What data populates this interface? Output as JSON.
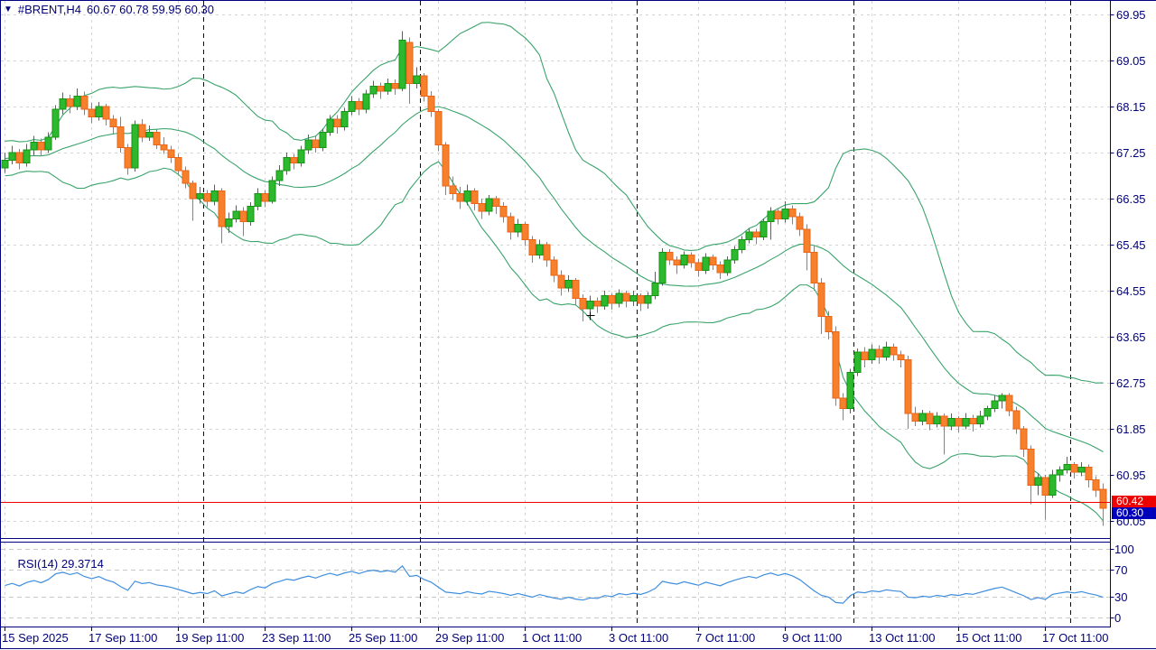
{
  "header": {
    "dropdown_icon": "▼",
    "symbol_period": "#BRENT,H4",
    "ohlc_text": "60.67 60.78 59.95 60.30"
  },
  "price_badges": {
    "red_value": "60.42",
    "blue_value": "60.30"
  },
  "rsi_panel_label": {
    "name": "RSI(14)",
    "value": "29.3714"
  },
  "chart_data": {
    "type": "candlestick",
    "symbol": "#BRENT",
    "timeframe": "H4",
    "current_bar": {
      "open": 60.67,
      "high": 60.78,
      "low": 59.95,
      "close": 60.3
    },
    "red_price_line": 60.42,
    "current_price": 60.3,
    "y_axis": {
      "top_label": 69.95,
      "bottom_label": 60.05,
      "step": 0.9,
      "labels": [
        69.95,
        69.05,
        68.15,
        67.25,
        66.35,
        65.45,
        64.55,
        63.65,
        62.75,
        61.85,
        60.95,
        60.05
      ]
    },
    "x_labels": [
      "15 Sep 2025",
      "17 Sep 11:00",
      "19 Sep 11:00",
      "23 Sep 11:00",
      "25 Sep 11:00",
      "29 Sep 11:00",
      "1 Oct 11:00",
      "3 Oct 11:00",
      "7 Oct 11:00",
      "9 Oct 11:00",
      "13 Oct 11:00",
      "15 Oct 11:00",
      "17 Oct 11:00"
    ],
    "x_label_bar_index": [
      0,
      12,
      24,
      36,
      48,
      60,
      72,
      84,
      96,
      108,
      120,
      132,
      144
    ],
    "week_separator_bar_boundaries": [
      27.5,
      57.5,
      87.5,
      117.5,
      147.5
    ],
    "bars_per_label": 12,
    "candles": [
      [
        66.95,
        67.25,
        66.85,
        67.1
      ],
      [
        67.1,
        67.38,
        67.02,
        67.25
      ],
      [
        67.25,
        67.32,
        66.92,
        67.05
      ],
      [
        67.05,
        67.42,
        66.98,
        67.3
      ],
      [
        67.3,
        67.58,
        67.2,
        67.45
      ],
      [
        67.45,
        67.52,
        67.18,
        67.3
      ],
      [
        67.3,
        67.65,
        67.24,
        67.55
      ],
      [
        67.55,
        68.18,
        67.5,
        68.1
      ],
      [
        68.1,
        68.42,
        68.0,
        68.3
      ],
      [
        68.3,
        68.38,
        68.02,
        68.15
      ],
      [
        68.15,
        68.5,
        68.08,
        68.35
      ],
      [
        68.35,
        68.44,
        67.98,
        68.1
      ],
      [
        68.1,
        68.22,
        67.82,
        67.95
      ],
      [
        67.95,
        68.24,
        67.88,
        68.15
      ],
      [
        68.15,
        68.2,
        67.78,
        67.9
      ],
      [
        67.9,
        67.98,
        67.6,
        67.75
      ],
      [
        67.75,
        67.95,
        67.25,
        67.35
      ],
      [
        67.35,
        67.42,
        66.82,
        66.95
      ],
      [
        66.95,
        67.88,
        66.88,
        67.8
      ],
      [
        67.8,
        67.9,
        67.45,
        67.55
      ],
      [
        67.55,
        67.78,
        67.48,
        67.65
      ],
      [
        67.65,
        67.7,
        67.32,
        67.4
      ],
      [
        67.4,
        67.55,
        67.22,
        67.3
      ],
      [
        67.3,
        67.38,
        67.05,
        67.15
      ],
      [
        67.15,
        67.22,
        66.8,
        66.9
      ],
      [
        66.9,
        66.98,
        66.55,
        66.65
      ],
      [
        66.65,
        66.7,
        65.92,
        66.35
      ],
      [
        66.35,
        66.58,
        66.25,
        66.45
      ],
      [
        66.45,
        66.52,
        66.18,
        66.3
      ],
      [
        66.3,
        66.62,
        66.22,
        66.5
      ],
      [
        66.5,
        66.55,
        65.48,
        65.8
      ],
      [
        65.8,
        66.08,
        65.68,
        65.95
      ],
      [
        65.95,
        66.22,
        65.88,
        66.1
      ],
      [
        66.1,
        66.18,
        65.62,
        65.9
      ],
      [
        65.9,
        66.28,
        65.82,
        66.2
      ],
      [
        66.2,
        66.55,
        66.12,
        66.45
      ],
      [
        66.45,
        66.52,
        66.18,
        66.3
      ],
      [
        66.3,
        66.78,
        66.25,
        66.7
      ],
      [
        66.7,
        67.0,
        66.6,
        66.9
      ],
      [
        66.9,
        67.25,
        66.82,
        67.15
      ],
      [
        67.15,
        67.22,
        66.92,
        67.05
      ],
      [
        67.05,
        67.38,
        66.98,
        67.3
      ],
      [
        67.3,
        67.6,
        67.22,
        67.5
      ],
      [
        67.5,
        67.58,
        67.25,
        67.35
      ],
      [
        67.35,
        67.72,
        67.28,
        67.65
      ],
      [
        67.65,
        67.98,
        67.58,
        67.9
      ],
      [
        67.9,
        67.98,
        67.62,
        67.75
      ],
      [
        67.75,
        68.12,
        67.68,
        68.05
      ],
      [
        68.05,
        68.35,
        67.98,
        68.25
      ],
      [
        68.25,
        68.32,
        67.98,
        68.1
      ],
      [
        68.1,
        68.48,
        68.02,
        68.4
      ],
      [
        68.4,
        68.65,
        68.32,
        68.55
      ],
      [
        68.55,
        68.62,
        68.3,
        68.45
      ],
      [
        68.45,
        68.7,
        68.38,
        68.6
      ],
      [
        68.6,
        68.68,
        68.38,
        68.5
      ],
      [
        68.5,
        69.62,
        68.45,
        69.45
      ],
      [
        69.4,
        69.5,
        68.2,
        68.6
      ],
      [
        68.6,
        68.92,
        68.5,
        68.75
      ],
      [
        68.75,
        68.8,
        68.25,
        68.35
      ],
      [
        68.35,
        68.45,
        67.95,
        68.05
      ],
      [
        68.05,
        68.1,
        67.28,
        67.4
      ],
      [
        67.4,
        67.45,
        66.42,
        66.6
      ],
      [
        66.6,
        66.78,
        66.32,
        66.45
      ],
      [
        66.45,
        66.58,
        66.15,
        66.3
      ],
      [
        66.3,
        66.62,
        66.22,
        66.5
      ],
      [
        66.5,
        66.55,
        66.12,
        66.25
      ],
      [
        66.25,
        66.35,
        65.95,
        66.1
      ],
      [
        66.1,
        66.42,
        66.02,
        66.35
      ],
      [
        66.35,
        66.4,
        66.05,
        66.2
      ],
      [
        66.2,
        66.28,
        65.88,
        66.0
      ],
      [
        66.0,
        66.08,
        65.55,
        65.7
      ],
      [
        65.7,
        65.95,
        65.6,
        65.85
      ],
      [
        65.85,
        65.9,
        65.42,
        65.55
      ],
      [
        65.55,
        65.62,
        65.1,
        65.25
      ],
      [
        65.25,
        65.55,
        65.18,
        65.45
      ],
      [
        65.45,
        65.5,
        65.02,
        65.15
      ],
      [
        65.15,
        65.22,
        64.72,
        64.85
      ],
      [
        64.85,
        64.95,
        64.45,
        64.6
      ],
      [
        64.6,
        64.85,
        64.52,
        64.75
      ],
      [
        64.75,
        64.8,
        64.28,
        64.4
      ],
      [
        64.4,
        64.48,
        63.95,
        64.2
      ],
      [
        64.2,
        64.45,
        64.1,
        64.35
      ],
      [
        64.35,
        64.42,
        64.12,
        64.25
      ],
      [
        64.25,
        64.55,
        64.18,
        64.45
      ],
      [
        64.45,
        64.5,
        64.18,
        64.3
      ],
      [
        64.3,
        64.58,
        64.22,
        64.5
      ],
      [
        64.5,
        64.55,
        64.22,
        64.35
      ],
      [
        64.35,
        64.55,
        64.25,
        64.45
      ],
      [
        64.45,
        64.5,
        64.15,
        64.3
      ],
      [
        64.3,
        64.52,
        64.2,
        64.45
      ],
      [
        64.45,
        64.92,
        64.38,
        64.7
      ],
      [
        64.7,
        65.38,
        64.65,
        65.3
      ],
      [
        65.3,
        65.36,
        65.05,
        65.15
      ],
      [
        65.15,
        65.22,
        64.88,
        65.05
      ],
      [
        65.05,
        65.32,
        64.98,
        65.25
      ],
      [
        65.25,
        65.3,
        65.0,
        65.1
      ],
      [
        65.1,
        65.18,
        64.82,
        64.95
      ],
      [
        64.95,
        65.28,
        64.88,
        65.2
      ],
      [
        65.2,
        65.26,
        64.96,
        65.05
      ],
      [
        65.05,
        65.12,
        64.78,
        64.9
      ],
      [
        64.9,
        65.22,
        64.84,
        65.15
      ],
      [
        65.15,
        65.42,
        65.08,
        65.35
      ],
      [
        65.35,
        65.62,
        65.28,
        65.55
      ],
      [
        65.55,
        65.78,
        65.48,
        65.7
      ],
      [
        65.7,
        65.76,
        65.46,
        65.6
      ],
      [
        65.6,
        65.96,
        65.54,
        65.9
      ],
      [
        65.9,
        66.18,
        65.55,
        66.1
      ],
      [
        66.1,
        66.16,
        65.85,
        65.95
      ],
      [
        65.95,
        66.3,
        65.88,
        66.15
      ],
      [
        66.15,
        66.22,
        65.85,
        66.0
      ],
      [
        66.0,
        66.08,
        65.62,
        65.75
      ],
      [
        65.75,
        65.85,
        64.95,
        65.3
      ],
      [
        65.3,
        65.42,
        64.55,
        64.7
      ],
      [
        64.7,
        64.8,
        63.7,
        64.05
      ],
      [
        64.05,
        64.15,
        63.6,
        63.75
      ],
      [
        63.75,
        63.85,
        62.3,
        62.45
      ],
      [
        62.45,
        62.55,
        62.02,
        62.25
      ],
      [
        62.25,
        63.02,
        62.15,
        62.95
      ],
      [
        62.95,
        63.42,
        62.88,
        63.35
      ],
      [
        63.35,
        63.45,
        63.05,
        63.2
      ],
      [
        63.2,
        63.5,
        63.12,
        63.4
      ],
      [
        63.4,
        63.48,
        63.12,
        63.25
      ],
      [
        63.25,
        63.55,
        63.18,
        63.45
      ],
      [
        63.45,
        63.52,
        63.18,
        63.3
      ],
      [
        63.3,
        63.38,
        63.05,
        63.2
      ],
      [
        63.2,
        63.28,
        61.85,
        62.15
      ],
      [
        62.15,
        62.28,
        61.9,
        62.0
      ],
      [
        62.0,
        62.22,
        61.92,
        62.15
      ],
      [
        62.15,
        62.2,
        61.82,
        61.95
      ],
      [
        61.95,
        62.18,
        61.88,
        62.1
      ],
      [
        62.1,
        62.15,
        61.35,
        61.9
      ],
      [
        61.9,
        62.15,
        61.82,
        62.05
      ],
      [
        62.05,
        62.1,
        61.78,
        61.9
      ],
      [
        61.9,
        62.16,
        61.84,
        62.05
      ],
      [
        62.05,
        62.12,
        61.8,
        61.95
      ],
      [
        61.95,
        62.2,
        61.88,
        62.1
      ],
      [
        62.1,
        62.3,
        62.02,
        62.25
      ],
      [
        62.25,
        62.5,
        62.18,
        62.4
      ],
      [
        62.4,
        62.55,
        62.25,
        62.5
      ],
      [
        62.5,
        62.55,
        62.1,
        62.2
      ],
      [
        62.2,
        62.28,
        61.75,
        61.85
      ],
      [
        61.85,
        61.9,
        61.3,
        61.45
      ],
      [
        61.45,
        61.52,
        60.38,
        60.75
      ],
      [
        60.75,
        60.98,
        60.55,
        60.9
      ],
      [
        60.9,
        60.95,
        60.08,
        60.55
      ],
      [
        60.55,
        61.05,
        60.5,
        60.95
      ],
      [
        60.95,
        61.12,
        60.82,
        61.05
      ],
      [
        61.05,
        61.3,
        60.98,
        61.15
      ],
      [
        61.15,
        61.2,
        60.88,
        61.0
      ],
      [
        61.0,
        61.2,
        60.92,
        61.1
      ],
      [
        61.1,
        61.15,
        60.7,
        60.85
      ],
      [
        60.85,
        60.92,
        60.52,
        60.65
      ],
      [
        60.67,
        60.78,
        59.95,
        60.3
      ]
    ],
    "prior_closes_for_indicators": [
      67.35,
      67.0,
      66.8,
      66.95,
      67.2,
      67.4,
      67.15,
      66.9,
      67.05,
      67.3,
      67.45,
      67.2,
      66.95,
      67.1,
      67.35,
      67.25,
      67.0,
      67.15,
      67.3,
      67.1
    ],
    "indicators": {
      "bollinger": {
        "period": 20,
        "deviation": 2,
        "color": "#3aa36b"
      },
      "rsi": {
        "label": "RSI(14)",
        "period": 14,
        "value": 29.3714,
        "color": "#3e8ede",
        "levels": [
          70,
          30
        ],
        "axis_labels": [
          100,
          70,
          30,
          0
        ],
        "scale_min": 0,
        "scale_max": 100
      }
    },
    "crosshair_marker": {
      "bar_index": 81,
      "price": 64.08
    },
    "colors": {
      "bull_fill": "#2eb82e",
      "bull_border": "#169316",
      "bear_fill": "#f5812d",
      "bear_border": "#e8651a",
      "grid": "#d4d4d4",
      "rsi_level_line": "#c9c9c9",
      "separator": "#000080",
      "frame": "#000080",
      "text": "#00007a",
      "red_line": "#ee0000",
      "badge_red_bg": "#ee0000",
      "badge_blue_bg": "#0000bb"
    }
  }
}
